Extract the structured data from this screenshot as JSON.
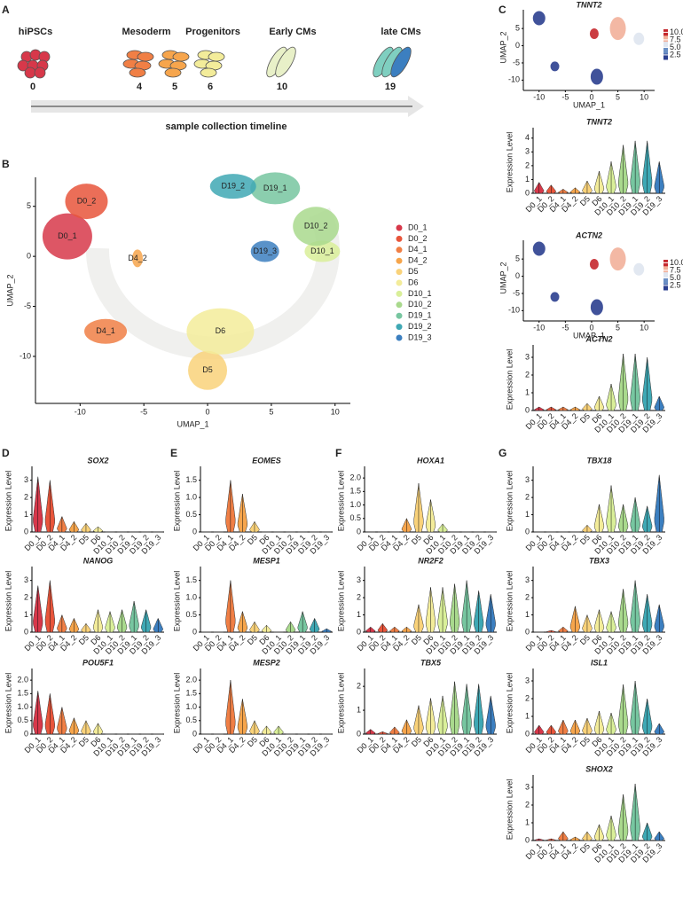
{
  "panel_labels": [
    "A",
    "B",
    "C",
    "D",
    "E",
    "F",
    "G"
  ],
  "timeline": {
    "stages": [
      "hiPSCs",
      "Mesoderm",
      "Progenitors",
      "Early CMs",
      "late CMs"
    ],
    "days": [
      0,
      4,
      5,
      6,
      10,
      19
    ],
    "axis_label": "sample collection timeline"
  },
  "umap": {
    "xlabel": "UMAP_1",
    "ylabel": "UMAP_2",
    "xlim": [
      -13.5,
      11.2
    ],
    "ylim": [
      -14.7,
      7.9
    ],
    "xticks": [
      -10,
      -5,
      0,
      5,
      10
    ],
    "yticks": [
      5,
      0,
      -5,
      -10
    ],
    "clusters": [
      {
        "name": "D0_1",
        "color": "#d7384a",
        "x": -11,
        "y": 2
      },
      {
        "name": "D0_2",
        "color": "#e8553b",
        "x": -9.5,
        "y": 5.5
      },
      {
        "name": "D4_1",
        "color": "#f07f45",
        "x": -8,
        "y": -7.5
      },
      {
        "name": "D4_2",
        "color": "#f6a54c",
        "x": -5.5,
        "y": -0.2
      },
      {
        "name": "D5",
        "color": "#f9d27a",
        "x": 0,
        "y": -11.4
      },
      {
        "name": "D6",
        "color": "#f3ec9a",
        "x": 1,
        "y": -7.5
      },
      {
        "name": "D10_1",
        "color": "#d9ef99",
        "x": 9,
        "y": 0.5
      },
      {
        "name": "D10_2",
        "color": "#a9d98d",
        "x": 8.5,
        "y": 3
      },
      {
        "name": "D19_1",
        "color": "#77c6a0",
        "x": 5.3,
        "y": 6.8
      },
      {
        "name": "D19_2",
        "color": "#3fa8b4",
        "x": 2,
        "y": 7
      },
      {
        "name": "D19_3",
        "color": "#3c7fc0",
        "x": 4.5,
        "y": 0.5
      }
    ]
  },
  "feature_plots": [
    {
      "gene": "TNNT2",
      "xlabel": "UMAP_1",
      "ylabel": "UMAP_2",
      "xlim": [
        -13,
        12
      ],
      "ylim": [
        -13,
        12
      ],
      "xticks": [
        -10,
        -5,
        0,
        5,
        10
      ],
      "yticks": [
        5,
        0,
        -5,
        -10
      ],
      "colorbar_ticks": [
        {
          "value": 10,
          "label": "10.0"
        },
        {
          "value": 7.5,
          "label": "7.5"
        },
        {
          "value": 5,
          "label": "5.0"
        },
        {
          "value": 2.5,
          "label": "2.5"
        }
      ],
      "colorbar_lim": [
        1,
        11
      ]
    },
    {
      "gene": "ACTN2",
      "xlabel": "UMAP_1",
      "ylabel": "UMAP_2",
      "xlim": [
        -13,
        12
      ],
      "ylim": [
        -13,
        12
      ],
      "xticks": [
        -10,
        -5,
        0,
        5,
        10
      ],
      "yticks": [
        5,
        0,
        -5,
        -10
      ],
      "colorbar_ticks": [
        {
          "value": 10,
          "label": "10.0"
        },
        {
          "value": 7.5,
          "label": "7.5"
        },
        {
          "value": 5,
          "label": "5.0"
        },
        {
          "value": 2.5,
          "label": "2.5"
        }
      ],
      "colorbar_lim": [
        1,
        11
      ]
    }
  ],
  "violin_categories": [
    "D0_1",
    "D0_2",
    "D4_1",
    "D4_2",
    "D5",
    "D6",
    "D10_1",
    "D10_2",
    "D19_1",
    "D19_2",
    "D19_3"
  ],
  "violin_ylabel": "Expression Level",
  "violins": [
    {
      "gene": "TNNT2",
      "ylim": [
        0,
        4.5
      ],
      "yticks": [
        0,
        1,
        2,
        3,
        4
      ],
      "values": [
        0.8,
        0.6,
        0.3,
        0.4,
        0.9,
        1.6,
        2.3,
        3.5,
        3.8,
        3.8,
        2.3
      ]
    },
    {
      "gene": "ACTN2",
      "ylim": [
        0,
        3.5
      ],
      "yticks": [
        0,
        1,
        2,
        3
      ],
      "values": [
        0.2,
        0.2,
        0.2,
        0.2,
        0.4,
        0.8,
        1.5,
        3.2,
        3.2,
        3.0,
        0.8
      ]
    },
    {
      "gene": "SOX2",
      "ylim": [
        0,
        3.6
      ],
      "yticks": [
        0,
        1,
        2,
        3
      ],
      "values": [
        3.2,
        3.0,
        0.9,
        0.6,
        0.5,
        0.3,
        0,
        0,
        0,
        0,
        0
      ]
    },
    {
      "gene": "EOMES",
      "ylim": [
        0,
        1.8
      ],
      "yticks": [
        0,
        0.5,
        {
          "value": 1,
          "label": "1.0"
        },
        1.5
      ],
      "values": [
        0,
        0,
        1.5,
        1.1,
        0.3,
        0,
        0,
        0,
        0,
        0,
        0
      ]
    },
    {
      "gene": "HOXA1",
      "ylim": [
        0,
        2.3
      ],
      "yticks": [
        0,
        0.5,
        {
          "value": 1,
          "label": "1.0"
        },
        1.5,
        {
          "value": 2,
          "label": "2.0"
        }
      ],
      "values": [
        0,
        0,
        0,
        0.5,
        1.8,
        1.2,
        0.3,
        0,
        0,
        0,
        0
      ]
    },
    {
      "gene": "TBX18",
      "ylim": [
        0,
        3.6
      ],
      "yticks": [
        0,
        1,
        2,
        3
      ],
      "values": [
        0,
        0,
        0,
        0,
        0.4,
        1.6,
        2.7,
        1.6,
        2.0,
        1.5,
        3.3
      ]
    },
    {
      "gene": "NANOG",
      "ylim": [
        0,
        3.6
      ],
      "yticks": [
        0,
        1,
        2,
        3
      ],
      "values": [
        2.7,
        3.0,
        1.0,
        0.8,
        0.5,
        1.3,
        1.2,
        1.3,
        1.8,
        1.3,
        0.8
      ]
    },
    {
      "gene": "MESP1",
      "ylim": [
        0,
        1.8
      ],
      "yticks": [
        0,
        0.5,
        {
          "value": 1,
          "label": "1.0"
        },
        1.5
      ],
      "values": [
        0,
        0,
        1.5,
        0.6,
        0.3,
        0.2,
        0,
        0.3,
        0.6,
        0.4,
        0.1
      ]
    },
    {
      "gene": "NR2F2",
      "ylim": [
        0,
        3.6
      ],
      "yticks": [
        0,
        1,
        2,
        3
      ],
      "values": [
        0.3,
        0.5,
        0.3,
        0.3,
        1.6,
        2.6,
        2.6,
        2.8,
        3.0,
        2.4,
        2.2
      ]
    },
    {
      "gene": "TBX3",
      "ylim": [
        0,
        3.6
      ],
      "yticks": [
        0,
        1,
        2,
        3
      ],
      "values": [
        0,
        0.1,
        0.3,
        1.5,
        1.0,
        1.3,
        1.2,
        2.5,
        3.0,
        2.2,
        1.6
      ]
    },
    {
      "gene": "POU5F1",
      "ylim": [
        0,
        2.3
      ],
      "yticks": [
        0,
        0.5,
        {
          "value": 1,
          "label": "1.0"
        },
        1.5,
        {
          "value": 2,
          "label": "2.0"
        }
      ],
      "values": [
        1.6,
        1.5,
        1.0,
        0.6,
        0.5,
        0.4,
        0,
        0,
        0,
        0,
        0
      ]
    },
    {
      "gene": "MESP2",
      "ylim": [
        0,
        2.3
      ],
      "yticks": [
        0,
        0.5,
        {
          "value": 1,
          "label": "1.0"
        },
        1.5,
        {
          "value": 2,
          "label": "2.0"
        }
      ],
      "values": [
        0,
        0,
        2.0,
        1.3,
        0.5,
        0.3,
        0.3,
        0,
        0,
        0,
        0
      ]
    },
    {
      "gene": "TBX5",
      "ylim": [
        0,
        2.6
      ],
      "yticks": [
        0,
        1,
        2
      ],
      "values": [
        0.2,
        0.1,
        0.3,
        0.6,
        1.2,
        1.5,
        1.6,
        2.2,
        2.1,
        2.1,
        1.6
      ]
    },
    {
      "gene": "ISL1",
      "ylim": [
        0,
        3.5
      ],
      "yticks": [
        0,
        1,
        2,
        3
      ],
      "values": [
        0.5,
        0.5,
        0.8,
        0.8,
        0.9,
        1.3,
        1.2,
        2.8,
        3.0,
        2.0,
        0.6
      ]
    },
    {
      "gene": "SHOX2",
      "ylim": [
        0,
        3.5
      ],
      "yticks": [
        0,
        1,
        2,
        3
      ],
      "values": [
        0.1,
        0.1,
        0.5,
        0.2,
        0.5,
        0.9,
        1.4,
        2.6,
        3.2,
        1.0,
        0.5
      ]
    }
  ]
}
